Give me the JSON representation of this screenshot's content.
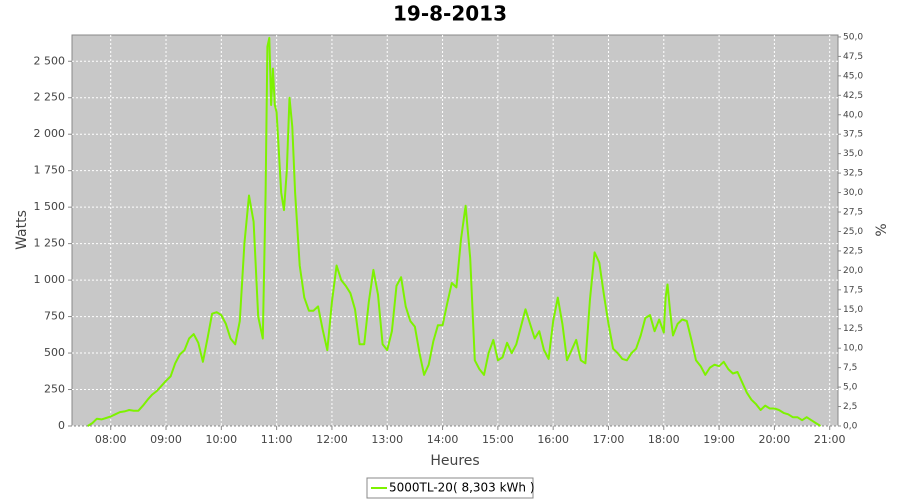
{
  "chart_data": {
    "type": "line",
    "title": "19-8-2013",
    "x_label": "Heures",
    "y_label": "Watts",
    "y2_label": "%",
    "xlim": [
      "07:18",
      "21:09"
    ],
    "xticks": [
      "08:00",
      "09:00",
      "10:00",
      "11:00",
      "12:00",
      "13:00",
      "14:00",
      "15:00",
      "16:00",
      "17:00",
      "18:00",
      "19:00",
      "20:00",
      "21:00"
    ],
    "ylim": [
      0,
      2680
    ],
    "yticks": [
      0,
      250,
      500,
      750,
      {
        "value": 1000,
        "label": "1 000"
      },
      {
        "value": 1250,
        "label": "1 250"
      },
      {
        "value": 1500,
        "label": "1 500"
      },
      {
        "value": 1750,
        "label": "1 750"
      },
      {
        "value": 2000,
        "label": "2 000"
      },
      {
        "value": 2250,
        "label": "2 250"
      },
      {
        "value": 2500,
        "label": "2 500"
      }
    ],
    "y2lim": [
      0,
      50.25
    ],
    "y2ticks": [
      {
        "value": 0,
        "label": "0,0"
      },
      {
        "value": 2.5,
        "label": "2,5"
      },
      {
        "value": 5,
        "label": "5,0"
      },
      {
        "value": 7.5,
        "label": "7,5"
      },
      {
        "value": 10,
        "label": "10,0"
      },
      {
        "value": 12.5,
        "label": "12,5"
      },
      {
        "value": 15,
        "label": "15,0"
      },
      {
        "value": 17.5,
        "label": "17,5"
      },
      {
        "value": 20,
        "label": "20,0"
      },
      {
        "value": 22.5,
        "label": "22,5"
      },
      {
        "value": 25,
        "label": "25,0"
      },
      {
        "value": 27.5,
        "label": "27,5"
      },
      {
        "value": 30,
        "label": "30,0"
      },
      {
        "value": 32.5,
        "label": "32,5"
      },
      {
        "value": 35,
        "label": "35,0"
      },
      {
        "value": 37.5,
        "label": "37,5"
      },
      {
        "value": 40,
        "label": "40,0"
      },
      {
        "value": 42.5,
        "label": "42,5"
      },
      {
        "value": 45,
        "label": "45,0"
      },
      {
        "value": 47.5,
        "label": "47,5"
      },
      {
        "value": 50,
        "label": "50,0"
      }
    ],
    "grid": true,
    "legend": "bottom",
    "x": [
      "07:35",
      "07:40",
      "07:45",
      "07:50",
      "07:55",
      "08:00",
      "08:05",
      "08:10",
      "08:15",
      "08:20",
      "08:25",
      "08:30",
      "08:35",
      "08:40",
      "08:45",
      "08:50",
      "08:55",
      "09:00",
      "09:05",
      "09:10",
      "09:15",
      "09:20",
      "09:25",
      "09:30",
      "09:35",
      "09:40",
      "09:45",
      "09:50",
      "09:55",
      "10:00",
      "10:05",
      "10:10",
      "10:15",
      "10:20",
      "10:25",
      "10:30",
      "10:35",
      "10:40",
      "10:45",
      "10:48",
      "10:50",
      "10:52",
      "10:54",
      "10:56",
      "10:58",
      "11:00",
      "11:05",
      "11:08",
      "11:11",
      "11:14",
      "11:17",
      "11:20",
      "11:25",
      "11:30",
      "11:35",
      "11:40",
      "11:45",
      "11:50",
      "11:55",
      "12:00",
      "12:05",
      "12:10",
      "12:15",
      "12:20",
      "12:25",
      "12:30",
      "12:35",
      "12:40",
      "12:45",
      "12:50",
      "12:55",
      "13:00",
      "13:05",
      "13:10",
      "13:15",
      "13:20",
      "13:25",
      "13:30",
      "13:35",
      "13:40",
      "13:45",
      "13:50",
      "13:55",
      "14:00",
      "14:05",
      "14:10",
      "14:15",
      "14:20",
      "14:25",
      "14:30",
      "14:35",
      "14:40",
      "14:45",
      "14:50",
      "14:55",
      "15:00",
      "15:05",
      "15:10",
      "15:15",
      "15:20",
      "15:25",
      "15:30",
      "15:35",
      "15:40",
      "15:45",
      "15:50",
      "15:55",
      "16:00",
      "16:05",
      "16:10",
      "16:15",
      "16:20",
      "16:25",
      "16:30",
      "16:35",
      "16:40",
      "16:45",
      "16:50",
      "16:55",
      "17:00",
      "17:05",
      "17:10",
      "17:15",
      "17:20",
      "17:25",
      "17:30",
      "17:35",
      "17:40",
      "17:45",
      "17:50",
      "17:55",
      "18:00",
      "18:02",
      "18:04",
      "18:07",
      "18:10",
      "18:15",
      "18:20",
      "18:25",
      "18:30",
      "18:35",
      "18:40",
      "18:45",
      "18:50",
      "18:55",
      "19:00",
      "19:05",
      "19:10",
      "19:15",
      "19:20",
      "19:25",
      "19:30",
      "19:35",
      "19:40",
      "19:45",
      "19:50",
      "19:55",
      "20:00",
      "20:05",
      "20:10",
      "20:15",
      "20:20",
      "20:25",
      "20:30",
      "20:35",
      "20:40",
      "20:45",
      "20:50"
    ],
    "series": [
      {
        "name": "5000TL-20( 8,303 kWh )",
        "color": "#7df200",
        "values": [
          0,
          20,
          50,
          45,
          55,
          65,
          80,
          95,
          100,
          110,
          105,
          105,
          140,
          180,
          215,
          240,
          275,
          310,
          340,
          430,
          490,
          520,
          600,
          630,
          570,
          440,
          600,
          770,
          780,
          760,
          700,
          600,
          560,
          720,
          1250,
          1580,
          1400,
          750,
          600,
          1600,
          2600,
          2660,
          2200,
          2450,
          2200,
          2150,
          1600,
          1480,
          1750,
          2250,
          2050,
          1600,
          1100,
          880,
          790,
          790,
          820,
          660,
          520,
          850,
          1100,
          1000,
          960,
          910,
          800,
          560,
          560,
          850,
          1070,
          900,
          560,
          520,
          650,
          960,
          1020,
          820,
          720,
          680,
          500,
          350,
          420,
          580,
          690,
          690,
          840,
          980,
          950,
          1280,
          1510,
          1150,
          450,
          390,
          350,
          500,
          590,
          450,
          470,
          570,
          500,
          560,
          680,
          800,
          700,
          600,
          650,
          520,
          460,
          720,
          880,
          700,
          450,
          520,
          590,
          450,
          430,
          870,
          1190,
          1120,
          900,
          700,
          530,
          500,
          460,
          450,
          500,
          530,
          620,
          740,
          760,
          650,
          730,
          640,
          880,
          970,
          780,
          620,
          700,
          730,
          720,
          590,
          450,
          410,
          350,
          400,
          420,
          410,
          440,
          390,
          360,
          370,
          300,
          230,
          180,
          150,
          110,
          140,
          120,
          120,
          110,
          90,
          80,
          60,
          60,
          40,
          60,
          40,
          20,
          0
        ]
      }
    ]
  }
}
